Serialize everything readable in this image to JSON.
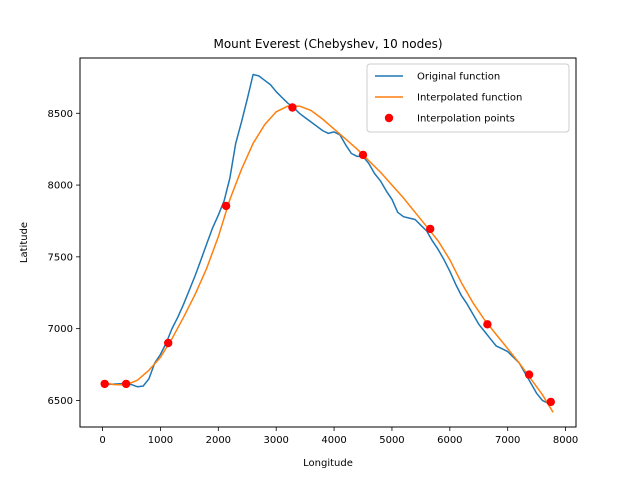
{
  "chart_data": {
    "type": "line",
    "title": "Mount Everest (Chebyshev, 10 nodes)",
    "xlabel": "Longitude",
    "ylabel": "Latitude",
    "xlim": [
      -390,
      8180
    ],
    "ylim": [
      6315,
      8885
    ],
    "xticks": [
      0,
      1000,
      2000,
      3000,
      4000,
      5000,
      6000,
      7000,
      8000
    ],
    "yticks": [
      6500,
      7000,
      7500,
      8000,
      8500
    ],
    "grid": false,
    "legend_position": "top-right",
    "series": [
      {
        "name": "Original function",
        "kind": "line",
        "color": "#1f77b4",
        "x": [
          0,
          100,
          200,
          300,
          400,
          500,
          600,
          700,
          800,
          900,
          1000,
          1100,
          1200,
          1300,
          1400,
          1500,
          1600,
          1700,
          1800,
          1900,
          2000,
          2100,
          2200,
          2300,
          2400,
          2500,
          2600,
          2700,
          2800,
          2900,
          3000,
          3100,
          3200,
          3300,
          3400,
          3500,
          3600,
          3700,
          3800,
          3900,
          4000,
          4100,
          4200,
          4300,
          4400,
          4500,
          4600,
          4700,
          4800,
          4900,
          5000,
          5100,
          5200,
          5300,
          5400,
          5500,
          5600,
          5700,
          5800,
          5900,
          6000,
          6100,
          6200,
          6300,
          6400,
          6500,
          6600,
          6700,
          6800,
          6900,
          7000,
          7100,
          7200,
          7300,
          7400,
          7500,
          7600,
          7700,
          7780
        ],
        "y": [
          6610,
          6612,
          6614,
          6616,
          6618,
          6610,
          6596,
          6600,
          6650,
          6760,
          6820,
          6900,
          7000,
          7080,
          7170,
          7270,
          7370,
          7480,
          7590,
          7700,
          7790,
          7890,
          8050,
          8290,
          8440,
          8600,
          8770,
          8760,
          8730,
          8700,
          8650,
          8610,
          8570,
          8540,
          8500,
          8470,
          8440,
          8410,
          8380,
          8360,
          8370,
          8350,
          8280,
          8220,
          8200,
          8200,
          8150,
          8080,
          8030,
          7960,
          7900,
          7810,
          7780,
          7770,
          7760,
          7720,
          7680,
          7610,
          7550,
          7480,
          7400,
          7310,
          7230,
          7170,
          7100,
          7030,
          6980,
          6930,
          6880,
          6860,
          6840,
          6800,
          6760,
          6690,
          6620,
          6550,
          6500,
          6480,
          6470
        ]
      },
      {
        "name": "Interpolated function",
        "kind": "line",
        "color": "#ff7f0e",
        "x": [
          0,
          200,
          400,
          600,
          800,
          1000,
          1200,
          1400,
          1600,
          1800,
          2000,
          2200,
          2400,
          2600,
          2800,
          3000,
          3200,
          3400,
          3600,
          3800,
          4000,
          4200,
          4400,
          4600,
          4800,
          5000,
          5200,
          5400,
          5600,
          5800,
          6000,
          6200,
          6400,
          6600,
          6800,
          7000,
          7200,
          7400,
          7600,
          7780
        ],
        "y": [
          6625,
          6610,
          6608,
          6640,
          6710,
          6800,
          6930,
          7080,
          7240,
          7420,
          7640,
          7900,
          8110,
          8290,
          8420,
          8510,
          8550,
          8550,
          8520,
          8460,
          8390,
          8320,
          8250,
          8170,
          8090,
          8000,
          7910,
          7810,
          7710,
          7610,
          7480,
          7320,
          7180,
          7060,
          6960,
          6860,
          6760,
          6650,
          6540,
          6420
        ]
      },
      {
        "name": "Interpolation points",
        "kind": "scatter",
        "color": "#ff0000",
        "x": [
          37,
          406,
          1134,
          2134,
          3280,
          4500,
          5660,
          6650,
          7370,
          7745
        ],
        "y": [
          6615,
          6615,
          6900,
          7855,
          8540,
          8210,
          7695,
          7030,
          6680,
          6490
        ]
      }
    ]
  }
}
